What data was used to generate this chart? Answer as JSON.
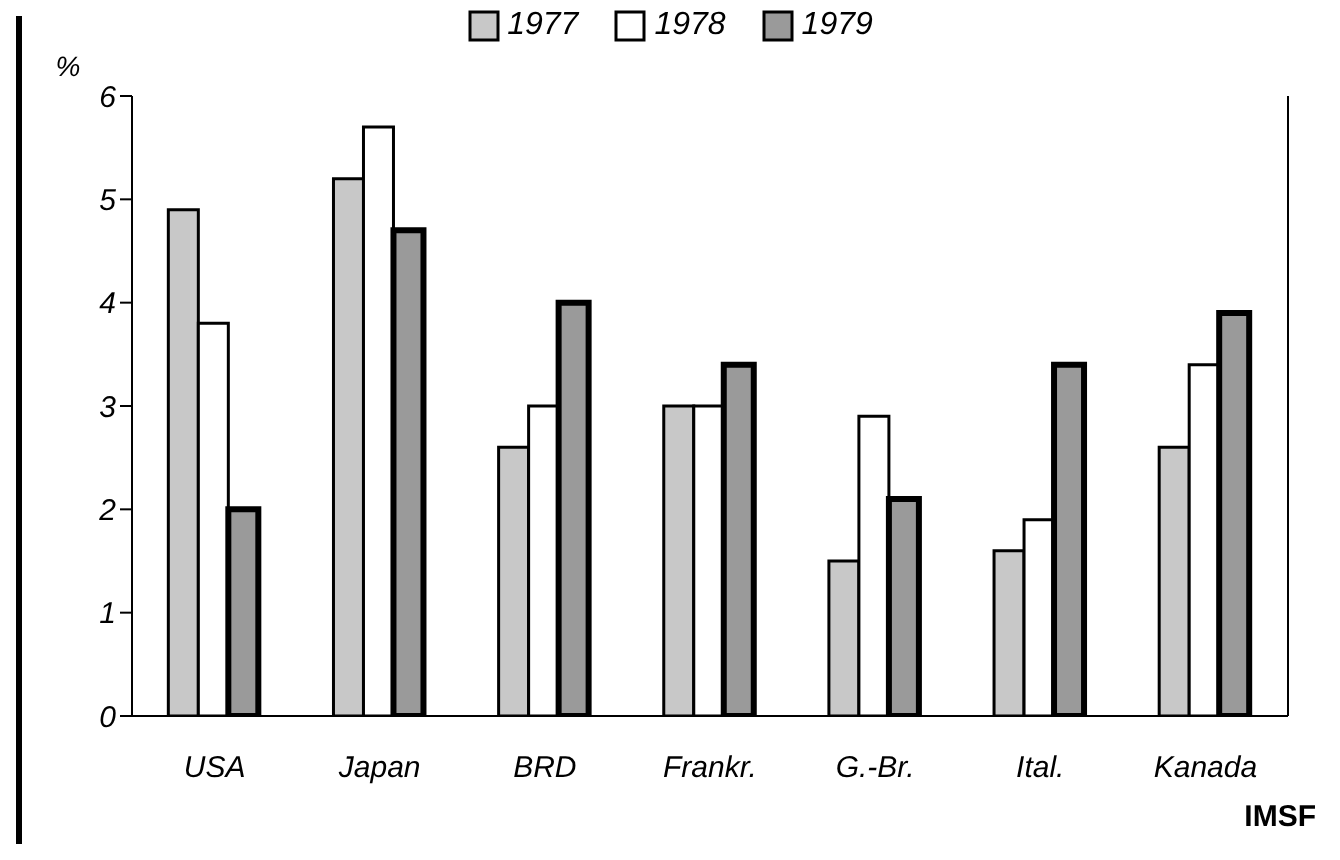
{
  "chart_data": {
    "type": "bar",
    "ylabel": "%",
    "categories": [
      "USA",
      "Japan",
      "BRD",
      "Frankr.",
      "G.-Br.",
      "Ital.",
      "Kanada"
    ],
    "series": [
      {
        "name": "1977",
        "color": "#c8c8c8",
        "values": [
          4.9,
          5.2,
          2.6,
          3.0,
          1.5,
          1.6,
          2.6
        ]
      },
      {
        "name": "1978",
        "color": "#ffffff",
        "values": [
          3.8,
          5.7,
          3.0,
          3.0,
          2.9,
          1.9,
          3.4
        ]
      },
      {
        "name": "1979",
        "color": "#9a9a9a",
        "values": [
          2.0,
          4.7,
          4.0,
          3.4,
          2.1,
          3.4,
          3.9
        ]
      }
    ],
    "ylim": [
      0,
      6
    ],
    "yticks": [
      0,
      1,
      2,
      3,
      4,
      5,
      6
    ],
    "grid": false,
    "legend": "top",
    "annotations": [
      "IMSF"
    ]
  }
}
